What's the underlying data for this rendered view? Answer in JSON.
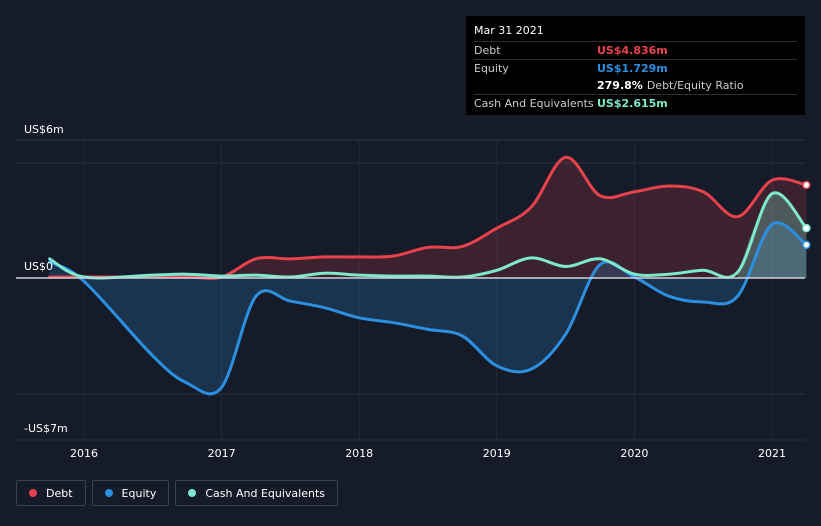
{
  "tooltip": {
    "date": "Mar 31 2021",
    "rows": {
      "debt": {
        "label": "Debt",
        "value": "US$4.836m",
        "color": "#e8424d"
      },
      "equity": {
        "label": "Equity",
        "value": "US$1.729m",
        "color": "#2d8fe0"
      },
      "ratio": {
        "value": "279.8%",
        "label": "Debt/Equity Ratio"
      },
      "cash": {
        "label": "Cash And Equivalents",
        "value": "US$2.615m",
        "color": "#7ee8cf"
      }
    }
  },
  "legend": {
    "debt": {
      "label": "Debt",
      "color": "#e8424d"
    },
    "equity": {
      "label": "Equity",
      "color": "#2d8fe0"
    },
    "cash": {
      "label": "Cash And Equivalents",
      "color": "#7ee8cf"
    }
  },
  "chart_data": {
    "type": "area",
    "title": "",
    "xlabel": "",
    "ylabel": "",
    "y_tick_labels": [
      {
        "value": 6,
        "label": "US$6m"
      },
      {
        "value": 0,
        "label": "US$0"
      },
      {
        "value": -7,
        "label": "-US$7m"
      }
    ],
    "x_tick_labels": [
      {
        "value": 2016,
        "label": "2016"
      },
      {
        "value": 2017,
        "label": "2017"
      },
      {
        "value": 2018,
        "label": "2018"
      },
      {
        "value": 2019,
        "label": "2019"
      },
      {
        "value": 2020,
        "label": "2020"
      },
      {
        "value": 2021,
        "label": "2021"
      }
    ],
    "xlim": [
      2015.45,
      2021.25
    ],
    "ylim": [
      -7,
      6
    ],
    "legend_position": "bottom-left",
    "series": [
      {
        "name": "Debt",
        "color": "#e8424d",
        "points": [
          [
            2015.75,
            0.05
          ],
          [
            2016.0,
            0.05
          ],
          [
            2016.5,
            0.05
          ],
          [
            2016.75,
            0.05
          ],
          [
            2017.0,
            0.05
          ],
          [
            2017.25,
            1.0
          ],
          [
            2017.5,
            1.0
          ],
          [
            2017.75,
            1.1
          ],
          [
            2018.0,
            1.1
          ],
          [
            2018.25,
            1.15
          ],
          [
            2018.5,
            1.6
          ],
          [
            2018.75,
            1.65
          ],
          [
            2019.0,
            2.6
          ],
          [
            2019.25,
            3.7
          ],
          [
            2019.5,
            6.3
          ],
          [
            2019.75,
            4.3
          ],
          [
            2020.0,
            4.5
          ],
          [
            2020.25,
            4.8
          ],
          [
            2020.5,
            4.5
          ],
          [
            2020.75,
            3.2
          ],
          [
            2021.0,
            5.1
          ],
          [
            2021.25,
            4.85
          ]
        ]
      },
      {
        "name": "Equity",
        "color": "#2d8fe0",
        "points": [
          [
            2015.75,
            0.85
          ],
          [
            2016.0,
            -0.2
          ],
          [
            2016.5,
            -4.7
          ],
          [
            2016.75,
            -6.35
          ],
          [
            2017.0,
            -6.6
          ],
          [
            2017.25,
            -1.1
          ],
          [
            2017.5,
            -1.4
          ],
          [
            2017.75,
            -1.8
          ],
          [
            2018.0,
            -2.4
          ],
          [
            2018.25,
            -2.7
          ],
          [
            2018.5,
            -3.1
          ],
          [
            2018.75,
            -3.5
          ],
          [
            2019.0,
            -5.3
          ],
          [
            2019.25,
            -5.5
          ],
          [
            2019.5,
            -3.4
          ],
          [
            2019.75,
            0.7
          ],
          [
            2020.0,
            0.05
          ],
          [
            2020.25,
            -1.1
          ],
          [
            2020.5,
            -1.45
          ],
          [
            2020.75,
            -1.1
          ],
          [
            2021.0,
            2.8
          ],
          [
            2021.25,
            1.73
          ]
        ]
      },
      {
        "name": "Cash And Equivalents",
        "color": "#7ee8cf",
        "points": [
          [
            2015.75,
            1.0
          ],
          [
            2016.0,
            0.05
          ],
          [
            2016.5,
            0.15
          ],
          [
            2016.75,
            0.2
          ],
          [
            2017.0,
            0.1
          ],
          [
            2017.25,
            0.15
          ],
          [
            2017.5,
            0.05
          ],
          [
            2017.75,
            0.25
          ],
          [
            2018.0,
            0.15
          ],
          [
            2018.25,
            0.1
          ],
          [
            2018.5,
            0.1
          ],
          [
            2018.75,
            0.05
          ],
          [
            2019.0,
            0.4
          ],
          [
            2019.25,
            1.05
          ],
          [
            2019.5,
            0.6
          ],
          [
            2019.75,
            1.0
          ],
          [
            2020.0,
            0.2
          ],
          [
            2020.25,
            0.2
          ],
          [
            2020.5,
            0.4
          ],
          [
            2020.75,
            0.3
          ],
          [
            2021.0,
            4.4
          ],
          [
            2021.25,
            2.6
          ]
        ]
      }
    ]
  }
}
